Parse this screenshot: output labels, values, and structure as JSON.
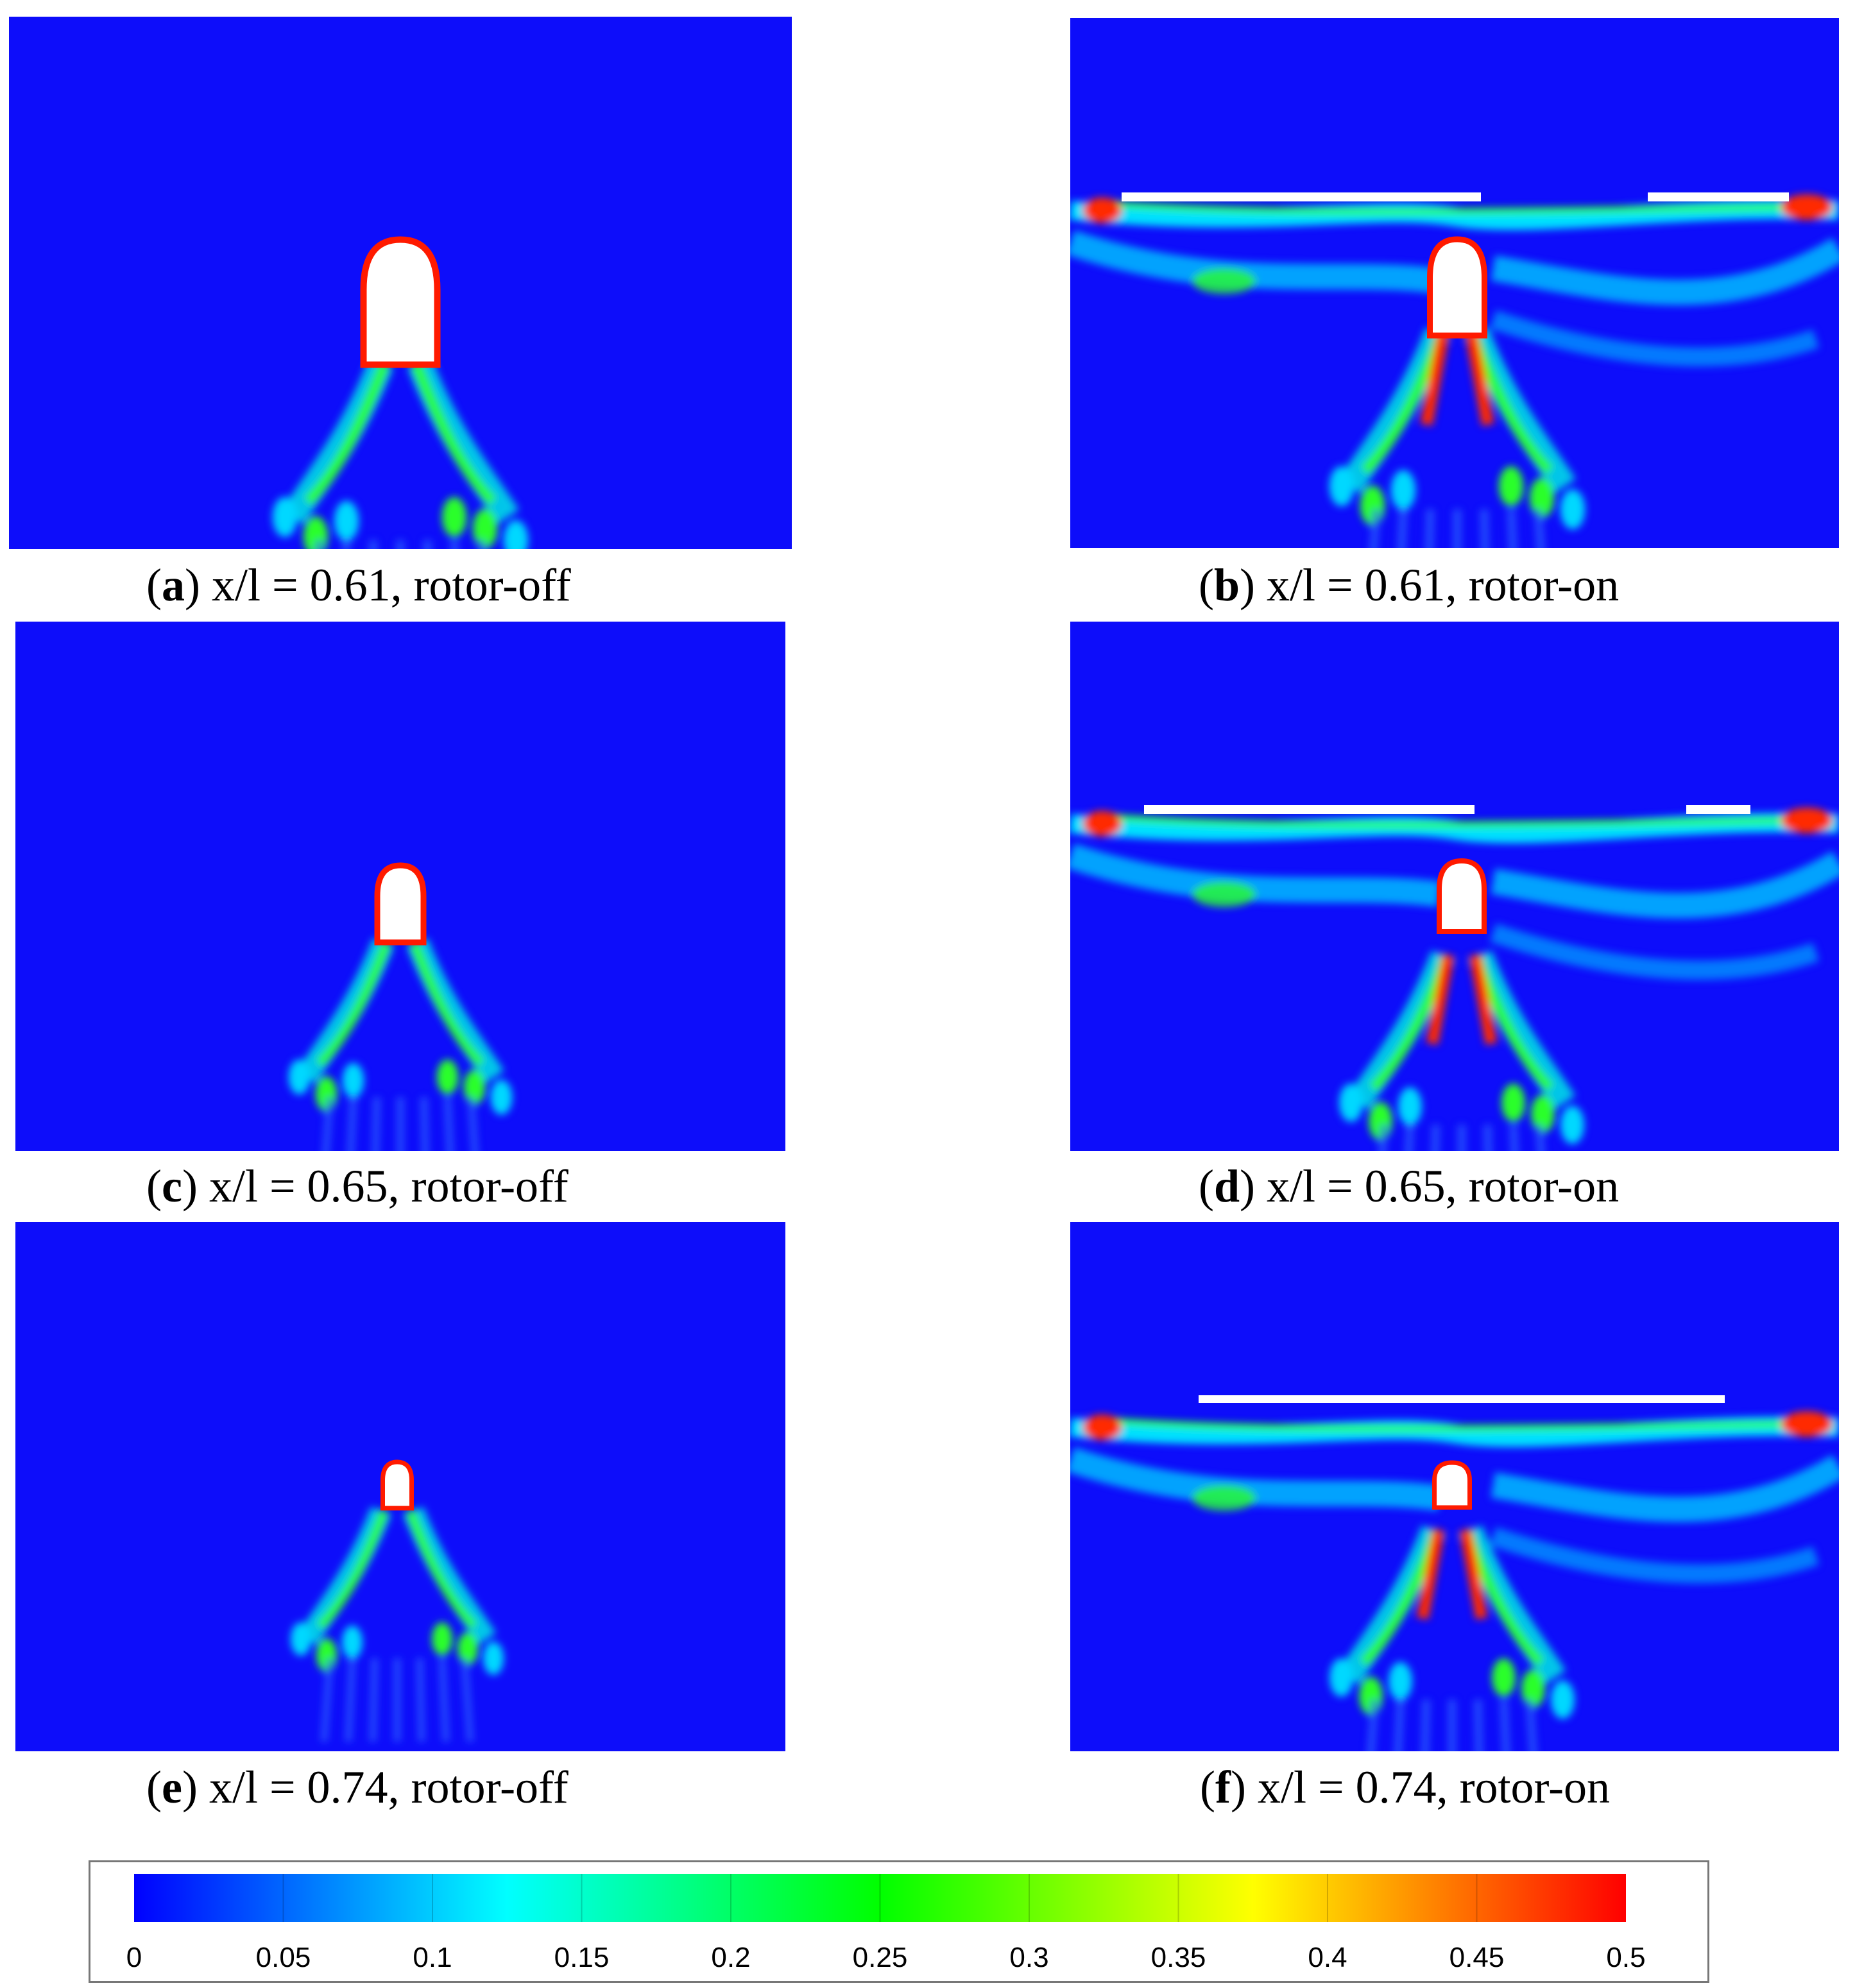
{
  "figure": {
    "panels": [
      {
        "id": "a",
        "letter": "a",
        "text": " x/l = 0.61, rotor-off",
        "x_over_l": 0.61,
        "rotor": "off"
      },
      {
        "id": "b",
        "letter": "b",
        "text": " x/l = 0.61, rotor-on",
        "x_over_l": 0.61,
        "rotor": "on"
      },
      {
        "id": "c",
        "letter": "c",
        "text": " x/l = 0.65, rotor-off",
        "x_over_l": 0.65,
        "rotor": "off"
      },
      {
        "id": "d",
        "letter": "d",
        "text": " x/l = 0.65, rotor-on",
        "x_over_l": 0.65,
        "rotor": "on"
      },
      {
        "id": "e",
        "letter": "e",
        "text": " x/l = 0.74, rotor-off",
        "x_over_l": 0.74,
        "rotor": "off"
      },
      {
        "id": "f",
        "letter": "f",
        "text": " x/l = 0.74, rotor-on",
        "x_over_l": 0.74,
        "rotor": "on"
      }
    ]
  },
  "chart_data": {
    "type": "heatmap",
    "colorbar": {
      "min": 0,
      "max": 0.5,
      "ticks": [
        0,
        0.05,
        0.1,
        0.15,
        0.2,
        0.25,
        0.3,
        0.35,
        0.4,
        0.45,
        0.5
      ],
      "tick_labels": [
        "0",
        "0.05",
        "0.1",
        "0.15",
        "0.2",
        "0.25",
        "0.3",
        "0.35",
        "0.4",
        "0.45",
        "0.5"
      ],
      "colors": [
        "#0000ff",
        "#00ffff",
        "#00ff00",
        "#ffff00",
        "#ff0000"
      ],
      "orientation": "horizontal"
    },
    "background_color": "#0d0dfa",
    "body_color": "#ffffff"
  }
}
